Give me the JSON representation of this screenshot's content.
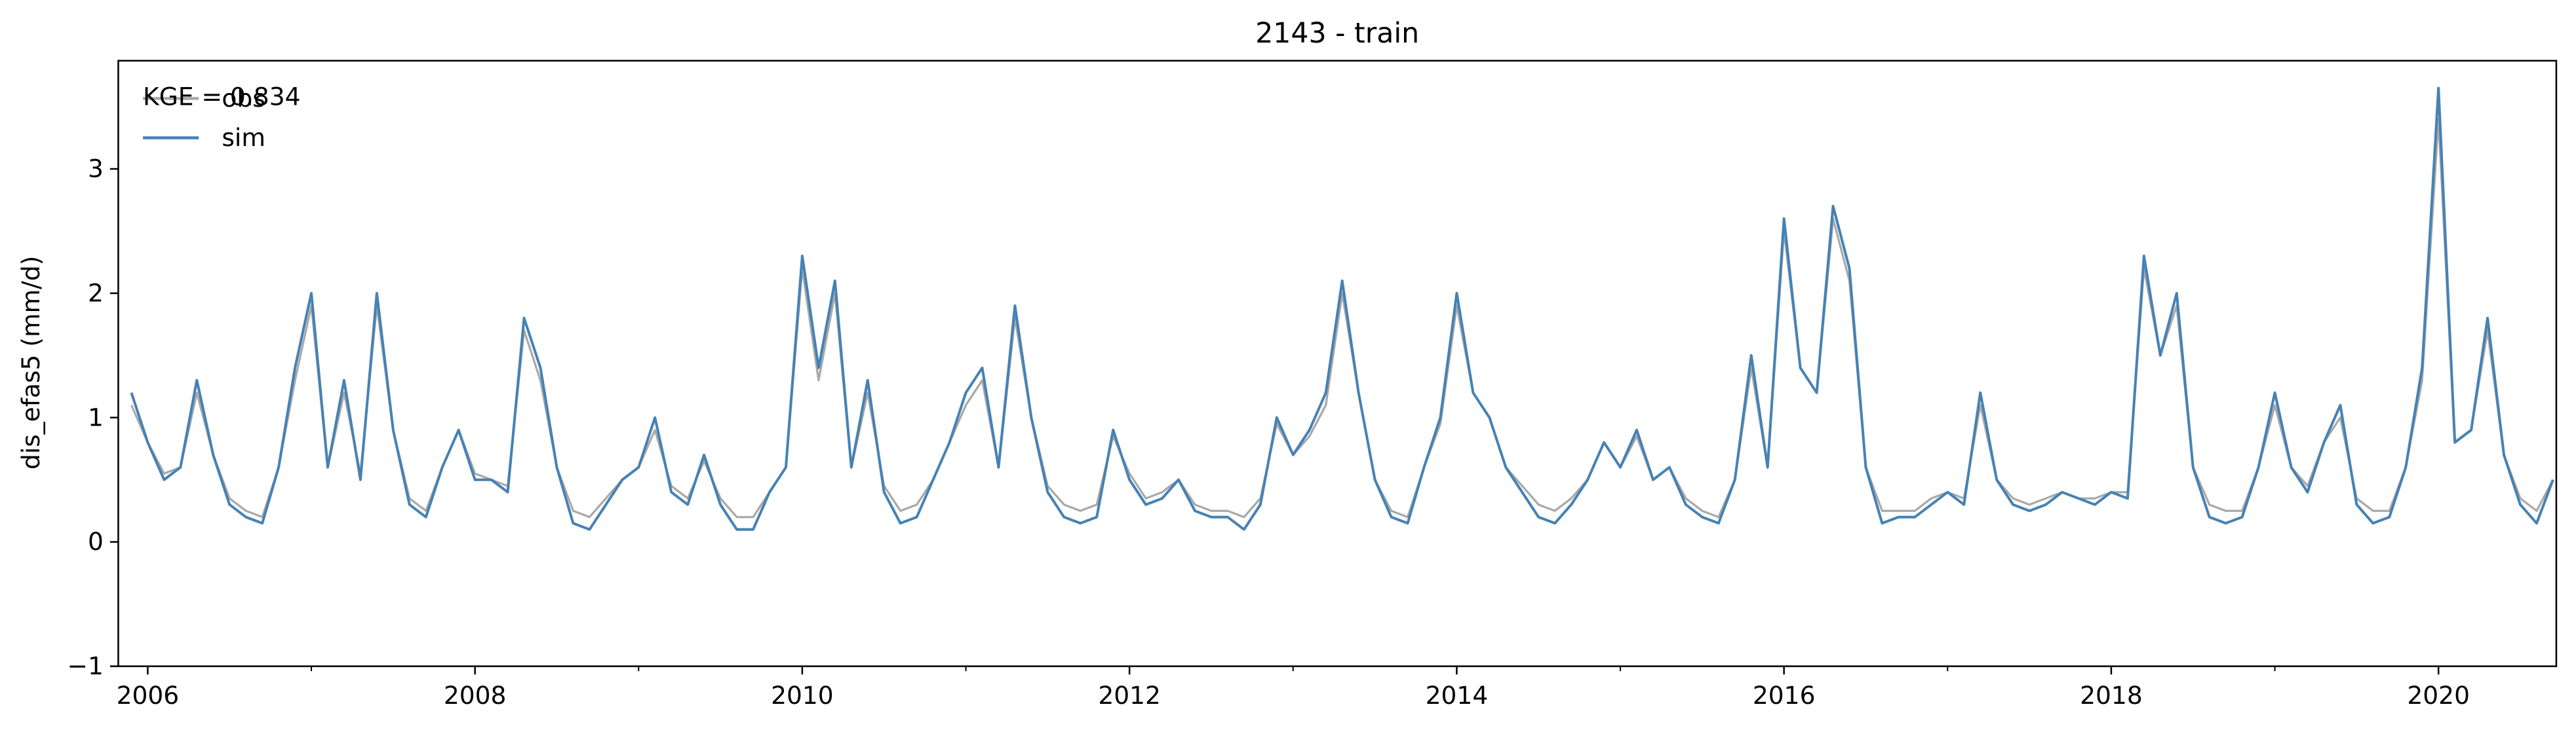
{
  "chart_data": {
    "type": "line",
    "title": "2143 - train",
    "ylabel": "dis_efas5 (mm/d)",
    "annotation": "KGE = 0.834",
    "legend": "upper left",
    "xlim": [
      2005.82,
      2020.72
    ],
    "xticks": [
      2006,
      2008,
      2010,
      2012,
      2014,
      2016,
      2018,
      2020
    ],
    "xminorticks": [
      2007,
      2009,
      2011,
      2013,
      2015,
      2017,
      2019
    ],
    "ylim": [
      -1,
      3.87
    ],
    "yticks": [
      {
        "value": -1,
        "label": "−1"
      },
      0,
      1,
      2,
      3
    ],
    "x": [
      2005.9,
      2006.0,
      2006.1,
      2006.2,
      2006.3,
      2006.4,
      2006.5,
      2006.6,
      2006.7,
      2006.8,
      2006.9,
      2007.0,
      2007.1,
      2007.2,
      2007.3,
      2007.4,
      2007.5,
      2007.6,
      2007.7,
      2007.8,
      2007.9,
      2008.0,
      2008.1,
      2008.2,
      2008.3,
      2008.4,
      2008.5,
      2008.6,
      2008.7,
      2008.8,
      2008.9,
      2009.0,
      2009.1,
      2009.2,
      2009.3,
      2009.4,
      2009.5,
      2009.6,
      2009.7,
      2009.8,
      2009.9,
      2010.0,
      2010.1,
      2010.2,
      2010.3,
      2010.4,
      2010.5,
      2010.6,
      2010.7,
      2010.8,
      2010.9,
      2011.0,
      2011.1,
      2011.2,
      2011.3,
      2011.4,
      2011.5,
      2011.6,
      2011.7,
      2011.8,
      2011.9,
      2012.0,
      2012.1,
      2012.2,
      2012.3,
      2012.4,
      2012.5,
      2012.6,
      2012.7,
      2012.8,
      2012.9,
      2013.0,
      2013.1,
      2013.2,
      2013.3,
      2013.4,
      2013.5,
      2013.6,
      2013.7,
      2013.8,
      2013.9,
      2014.0,
      2014.1,
      2014.2,
      2014.3,
      2014.4,
      2014.5,
      2014.6,
      2014.7,
      2014.8,
      2014.9,
      2015.0,
      2015.1,
      2015.2,
      2015.3,
      2015.4,
      2015.5,
      2015.6,
      2015.7,
      2015.8,
      2015.9,
      2016.0,
      2016.1,
      2016.2,
      2016.3,
      2016.4,
      2016.5,
      2016.6,
      2016.7,
      2016.8,
      2016.9,
      2017.0,
      2017.1,
      2017.2,
      2017.3,
      2017.4,
      2017.5,
      2017.6,
      2017.7,
      2017.8,
      2017.9,
      2018.0,
      2018.1,
      2018.2,
      2018.3,
      2018.4,
      2018.5,
      2018.6,
      2018.7,
      2018.8,
      2018.9,
      2019.0,
      2019.1,
      2019.2,
      2019.3,
      2019.4,
      2019.5,
      2019.6,
      2019.7,
      2019.8,
      2019.9,
      2020.0,
      2020.1,
      2020.2,
      2020.3,
      2020.4,
      2020.5,
      2020.6,
      2020.7
    ],
    "series": [
      {
        "name": "obs",
        "color": "#a9a9a9",
        "values": [
          1.1,
          0.8,
          0.55,
          0.6,
          1.2,
          0.7,
          0.35,
          0.25,
          0.2,
          0.6,
          1.3,
          1.9,
          0.6,
          1.2,
          0.55,
          1.9,
          0.9,
          0.35,
          0.25,
          0.6,
          0.9,
          0.55,
          0.5,
          0.45,
          1.7,
          1.3,
          0.6,
          0.25,
          0.2,
          0.35,
          0.5,
          0.6,
          0.9,
          0.45,
          0.35,
          0.65,
          0.35,
          0.2,
          0.2,
          0.4,
          0.6,
          2.2,
          1.3,
          2.0,
          0.6,
          1.2,
          0.45,
          0.25,
          0.3,
          0.5,
          0.8,
          1.1,
          1.3,
          0.6,
          1.8,
          1.0,
          0.45,
          0.3,
          0.25,
          0.3,
          0.85,
          0.55,
          0.35,
          0.4,
          0.5,
          0.3,
          0.25,
          0.25,
          0.2,
          0.35,
          0.95,
          0.7,
          0.85,
          1.1,
          2.0,
          1.2,
          0.5,
          0.25,
          0.2,
          0.6,
          0.95,
          1.9,
          1.2,
          1.0,
          0.6,
          0.45,
          0.3,
          0.25,
          0.35,
          0.5,
          0.8,
          0.6,
          0.85,
          0.5,
          0.6,
          0.35,
          0.25,
          0.2,
          0.5,
          1.4,
          0.6,
          2.5,
          1.4,
          1.2,
          2.6,
          2.1,
          0.6,
          0.25,
          0.25,
          0.25,
          0.35,
          0.4,
          0.35,
          1.1,
          0.5,
          0.35,
          0.3,
          0.35,
          0.4,
          0.35,
          0.35,
          0.4,
          0.4,
          2.2,
          1.5,
          1.9,
          0.6,
          0.3,
          0.25,
          0.25,
          0.6,
          1.1,
          0.6,
          0.45,
          0.8,
          1.0,
          0.35,
          0.25,
          0.25,
          0.6,
          1.3,
          3.4,
          0.8,
          0.9,
          1.7,
          0.7,
          0.35,
          0.25,
          0.5
        ]
      },
      {
        "name": "sim",
        "color": "#4682b4",
        "values": [
          1.2,
          0.8,
          0.5,
          0.6,
          1.3,
          0.7,
          0.3,
          0.2,
          0.15,
          0.6,
          1.4,
          2.0,
          0.6,
          1.3,
          0.5,
          2.0,
          0.9,
          0.3,
          0.2,
          0.6,
          0.9,
          0.5,
          0.5,
          0.4,
          1.8,
          1.4,
          0.6,
          0.15,
          0.1,
          0.3,
          0.5,
          0.6,
          1.0,
          0.4,
          0.3,
          0.7,
          0.3,
          0.1,
          0.1,
          0.4,
          0.6,
          2.3,
          1.4,
          2.1,
          0.6,
          1.3,
          0.4,
          0.15,
          0.2,
          0.5,
          0.8,
          1.2,
          1.4,
          0.6,
          1.9,
          1.0,
          0.4,
          0.2,
          0.15,
          0.2,
          0.9,
          0.5,
          0.3,
          0.35,
          0.5,
          0.25,
          0.2,
          0.2,
          0.1,
          0.3,
          1.0,
          0.7,
          0.9,
          1.2,
          2.1,
          1.2,
          0.5,
          0.2,
          0.15,
          0.6,
          1.0,
          2.0,
          1.2,
          1.0,
          0.6,
          0.4,
          0.2,
          0.15,
          0.3,
          0.5,
          0.8,
          0.6,
          0.9,
          0.5,
          0.6,
          0.3,
          0.2,
          0.15,
          0.5,
          1.5,
          0.6,
          2.6,
          1.4,
          1.2,
          2.7,
          2.2,
          0.6,
          0.15,
          0.2,
          0.2,
          0.3,
          0.4,
          0.3,
          1.2,
          0.5,
          0.3,
          0.25,
          0.3,
          0.4,
          0.35,
          0.3,
          0.4,
          0.35,
          2.3,
          1.5,
          2.0,
          0.6,
          0.2,
          0.15,
          0.2,
          0.6,
          1.2,
          0.6,
          0.4,
          0.8,
          1.1,
          0.3,
          0.15,
          0.2,
          0.6,
          1.4,
          3.65,
          0.8,
          0.9,
          1.8,
          0.7,
          0.3,
          0.15,
          0.5
        ]
      }
    ]
  }
}
